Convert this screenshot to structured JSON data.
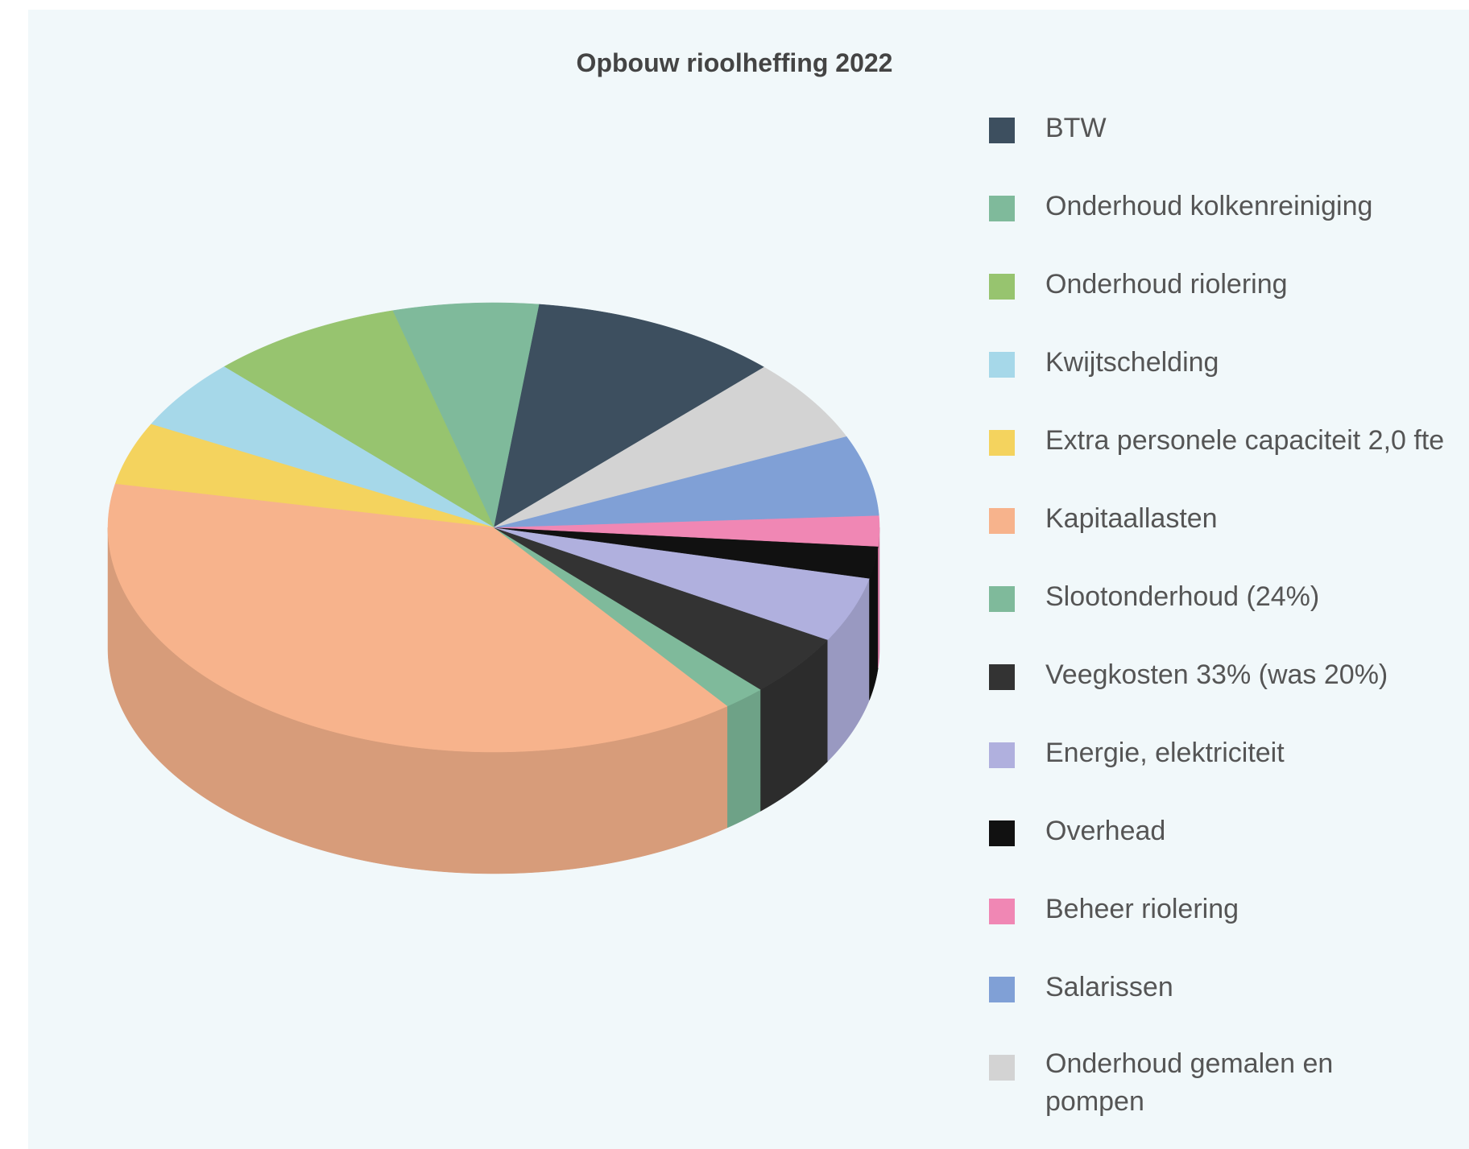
{
  "chart_data": {
    "type": "pie3d",
    "title": "Opbouw rioolheffing 2022",
    "categories": [
      "BTW",
      "Onderhoud kolkenreiniging",
      "Onderhoud riolering",
      "Kwijtschelding",
      "Extra personele capaciteit 2,0 fte",
      "Kapitaallasten",
      "Slootonderhoud (24%)",
      "Veegkosten 33% (was 20%)",
      "Energie, elektriciteit",
      "Overhead",
      "Beheer riolering",
      "Salarissen",
      "Onderhoud gemalen en pompen"
    ],
    "values": [
      10.5,
      6.1,
      8.1,
      5.1,
      4.5,
      38.5,
      1.8,
      4.5,
      4.7,
      2.3,
      2.2,
      5.8,
      6.0
    ],
    "colors": [
      "#3d4f5f",
      "#7fba9b",
      "#97c46f",
      "#a6d8e9",
      "#f4d35e",
      "#f7b38c",
      "#7fba9b",
      "#333333",
      "#b0b0de",
      "#111111",
      "#f087b4",
      "#80a0d6",
      "#d3d3d3"
    ],
    "legend": "right"
  }
}
